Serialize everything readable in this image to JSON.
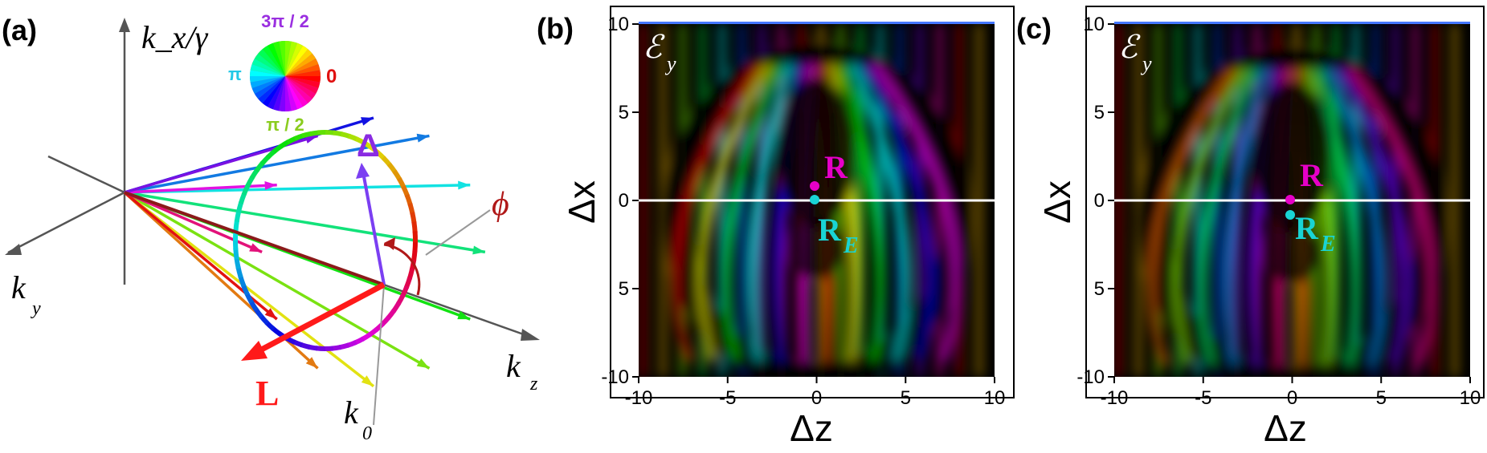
{
  "panels": {
    "a": {
      "label": "(a)",
      "axis_vertical": "k_x/γ",
      "axis_left": "k",
      "axis_left_sub": "y",
      "axis_right": "k",
      "axis_right_sub": "z",
      "delta_label": "Δ",
      "phi_label": "ϕ",
      "L_label": "L",
      "k0_label": "k",
      "k0_sub": "0",
      "wheel_labels": {
        "top": "3π / 2",
        "right": "0",
        "bottom": "π / 2",
        "left": "π"
      }
    },
    "b": {
      "label": "(b)",
      "field_label": "ℰ",
      "field_sub": "y",
      "point_R": "R",
      "point_RE": "R",
      "point_RE_sub": "E",
      "xlabel": "Δz",
      "ylabel": "Δx"
    },
    "c": {
      "label": "(c)",
      "field_label": "ℰ",
      "field_sub": "y",
      "point_R": "R",
      "point_RE": "R",
      "point_RE_sub": "E",
      "xlabel": "Δz",
      "ylabel": "Δx"
    }
  },
  "axes": {
    "x_ticks": [
      "-10",
      "-5",
      "0",
      "5",
      "10"
    ],
    "y_ticks": [
      "10",
      "5",
      "0",
      "5",
      "-10"
    ]
  },
  "colors": {
    "R": "#e600c8",
    "RE": "#19d4d4",
    "L": "#ff1a1a",
    "delta": "#8a2be2",
    "phi": "#b01818",
    "wheel_top": "#9a2fe0",
    "wheel_right": "#e01010",
    "wheel_bottom": "#8acc1e",
    "wheel_left": "#22c8e6"
  }
}
